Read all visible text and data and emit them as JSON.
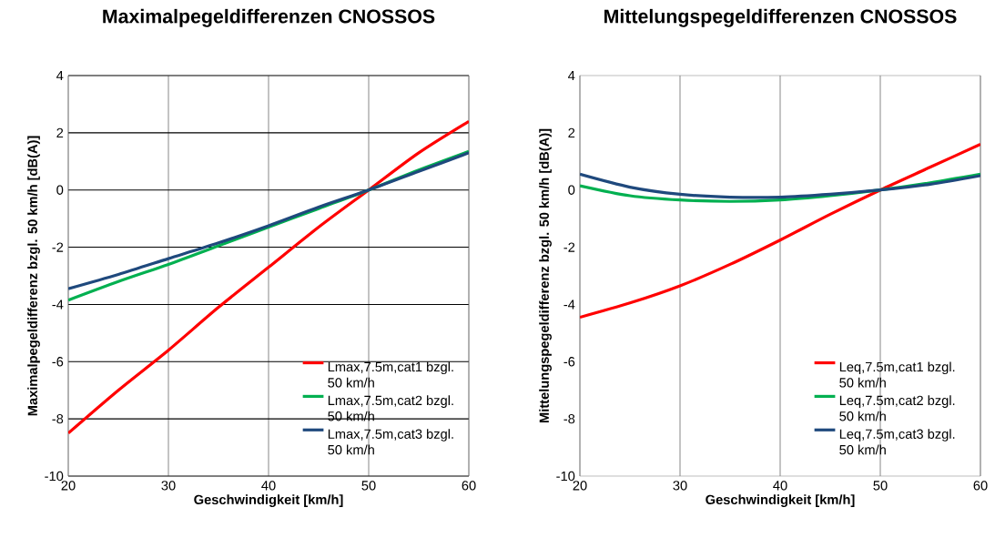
{
  "chart_data": [
    {
      "type": "line",
      "title": "Maximalpegeldifferenzen CNOSSOS",
      "xlabel": "Geschwindigkeit [km/h]",
      "ylabel": "Maximalpegeldifferenz bzgl. 50 km/h [dB(A)]",
      "x": [
        20,
        25,
        30,
        35,
        40,
        45,
        50,
        55,
        60
      ],
      "series": [
        {
          "name": "Lmax,7.5m,cat1 bzgl. 50 km/h",
          "color": "#ff0000",
          "values": [
            -8.5,
            -7.0,
            -5.6,
            -4.1,
            -2.7,
            -1.3,
            0,
            1.3,
            2.4
          ]
        },
        {
          "name": "Lmax,7.5m,cat2 bzgl. 50 km/h",
          "color": "#00b050",
          "values": [
            -3.85,
            -3.2,
            -2.6,
            -1.95,
            -1.3,
            -0.65,
            0,
            0.7,
            1.35
          ]
        },
        {
          "name": "Lmax,7.5m,cat3 bzgl. 50 km/h",
          "color": "#1f497d",
          "values": [
            -3.45,
            -2.95,
            -2.4,
            -1.85,
            -1.25,
            -0.6,
            0,
            0.65,
            1.3
          ]
        }
      ],
      "xlim": [
        20,
        60
      ],
      "ylim": [
        -10,
        4
      ],
      "xticks": [
        20,
        30,
        40,
        50,
        60
      ],
      "yticks": [
        -10,
        -8,
        -6,
        -4,
        -2,
        0,
        2,
        4
      ],
      "grid": true,
      "legend": "bottom right"
    },
    {
      "type": "line",
      "title": "Mittelungspegeldifferenzen CNOSSOS",
      "xlabel": "Geschwindigkeit [km/h]",
      "ylabel": "Mittelungspegeldifferenz bzgl. 50 km/h [dB(A)]",
      "x": [
        20,
        25,
        30,
        35,
        40,
        45,
        50,
        55,
        60
      ],
      "series": [
        {
          "name": "Leq,7.5m,cat1 bzgl. 50 km/h",
          "color": "#ff0000",
          "values": [
            -4.45,
            -3.95,
            -3.35,
            -2.6,
            -1.75,
            -0.85,
            0,
            0.8,
            1.6
          ]
        },
        {
          "name": "Leq,7.5m,cat2 bzgl. 50 km/h",
          "color": "#00b050",
          "values": [
            0.15,
            -0.2,
            -0.35,
            -0.4,
            -0.35,
            -0.2,
            0,
            0.25,
            0.55
          ]
        },
        {
          "name": "Leq,7.5m,cat3 bzgl. 50 km/h",
          "color": "#1f497d",
          "values": [
            0.55,
            0.1,
            -0.15,
            -0.25,
            -0.25,
            -0.15,
            0,
            0.2,
            0.5
          ]
        }
      ],
      "xlim": [
        20,
        60
      ],
      "ylim": [
        -10,
        4
      ],
      "xticks": [
        20,
        30,
        40,
        50,
        60
      ],
      "yticks": [
        -10,
        -8,
        -6,
        -4,
        -2,
        0,
        2,
        4
      ],
      "grid": "x",
      "legend": "bottom right"
    }
  ]
}
